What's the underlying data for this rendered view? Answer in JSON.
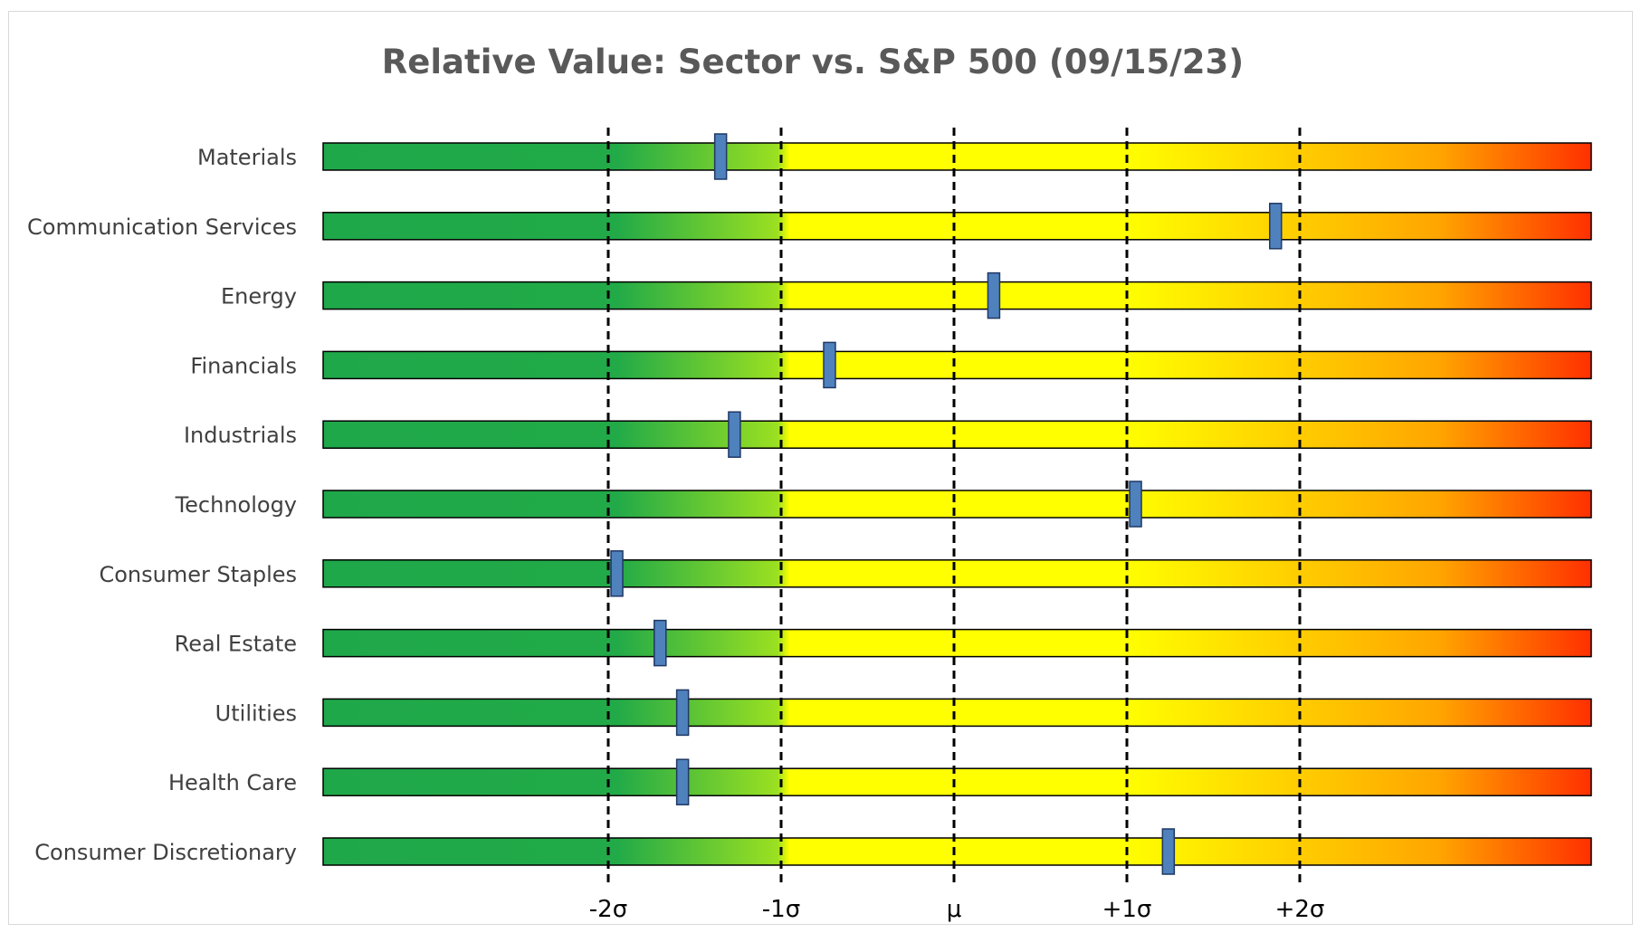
{
  "chart_data": {
    "type": "bar",
    "title": "Relative Value: Sector vs. S&P 500 (09/15/23)",
    "xlabel": "",
    "ylabel": "",
    "x_unit": "standard deviations from mean",
    "xlim": [
      -2.16,
      2.16
    ],
    "x_ticks": [
      {
        "value": -2,
        "label": "-2σ"
      },
      {
        "value": -1,
        "label": "-1σ"
      },
      {
        "value": 0,
        "label": "μ"
      },
      {
        "value": 1,
        "label": "+1σ"
      },
      {
        "value": 2,
        "label": "+2σ"
      }
    ],
    "categories": [
      "Materials",
      "Communication Services",
      "Energy",
      "Financials",
      "Industrials",
      "Technology",
      "Consumer Staples",
      "Real Estate",
      "Utilities",
      "Health Care",
      "Consumer Discretionary"
    ],
    "values": [
      -1.35,
      1.86,
      0.23,
      -0.72,
      -1.27,
      1.05,
      -1.95,
      -1.7,
      -1.57,
      -1.57,
      1.24
    ],
    "colors": {
      "green": "#1fa84a",
      "yellow": "#ffff00",
      "orange": "#ffa500",
      "red": "#ff3000",
      "marker": "#4f81bd",
      "marker_border": "#1f3864"
    },
    "gridlines": "dashed vertical at tick values",
    "legend": "none"
  }
}
